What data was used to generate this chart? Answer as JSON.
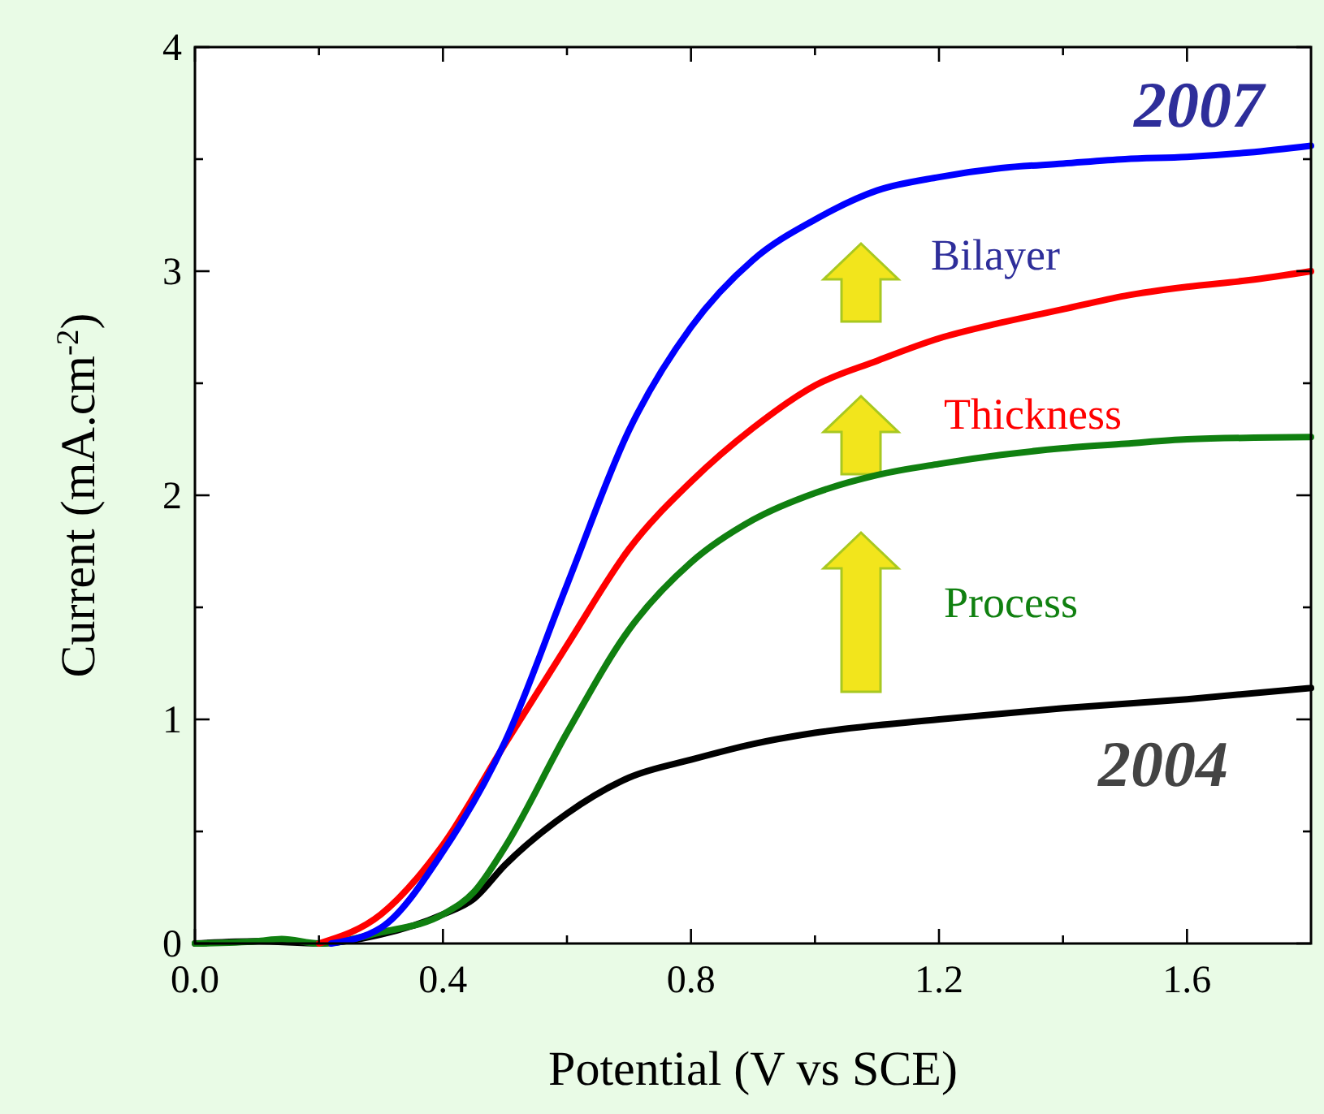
{
  "chart_data": {
    "type": "line",
    "xlabel": "Potential (V vs SCE)",
    "ylabel": "Current (mA.cm$^{-2}$)",
    "xlim": [
      0,
      1.8
    ],
    "ylim": [
      0,
      4
    ],
    "xticks": [
      {
        "value": 0,
        "label": "0.0"
      },
      {
        "value": 0.2,
        "label": null
      },
      {
        "value": 0.4,
        "label": "0.4"
      },
      {
        "value": 0.6,
        "label": null
      },
      {
        "value": 0.8,
        "label": "0.8"
      },
      {
        "value": 1.0,
        "label": null
      },
      {
        "value": 1.2,
        "label": "1.2"
      },
      {
        "value": 1.4,
        "label": null
      },
      {
        "value": 1.6,
        "label": "1.6"
      }
    ],
    "yticks": [
      0,
      {
        "value": 0.5,
        "label": null
      },
      1,
      {
        "value": 1.5,
        "label": null
      },
      2,
      {
        "value": 2.5,
        "label": null
      },
      3,
      {
        "value": 3.5,
        "label": null
      },
      4
    ],
    "grid": false,
    "marker": "none",
    "line_style": "solid",
    "series": [
      {
        "color": "#000000",
        "x": [
          0,
          0.1,
          0.2,
          0.3,
          0.4,
          0.45,
          0.5,
          0.6,
          0.7,
          0.8,
          0.9,
          1.0,
          1.2,
          1.4,
          1.6,
          1.8
        ],
        "values": [
          0,
          0.01,
          0,
          0.04,
          0.13,
          0.2,
          0.35,
          0.58,
          0.74,
          0.82,
          0.89,
          0.94,
          1.0,
          1.05,
          1.09,
          1.14
        ]
      },
      {
        "color": "#108010",
        "x": [
          0,
          0.1,
          0.14,
          0.2,
          0.3,
          0.4,
          0.45,
          0.5,
          0.6,
          0.7,
          0.8,
          0.9,
          1.0,
          1.1,
          1.2,
          1.3,
          1.4,
          1.5,
          1.6,
          1.8
        ],
        "values": [
          0,
          0.01,
          0.02,
          0,
          0.05,
          0.13,
          0.23,
          0.43,
          0.94,
          1.4,
          1.7,
          1.89,
          2.01,
          2.09,
          2.14,
          2.18,
          2.21,
          2.23,
          2.25,
          2.26
        ]
      },
      {
        "color": "#ff0000",
        "x": [
          0.2,
          0.3,
          0.4,
          0.5,
          0.6,
          0.7,
          0.8,
          0.9,
          1.0,
          1.1,
          1.2,
          1.3,
          1.4,
          1.5,
          1.6,
          1.7,
          1.8
        ],
        "values": [
          0,
          0.13,
          0.44,
          0.89,
          1.33,
          1.76,
          2.06,
          2.3,
          2.49,
          2.6,
          2.7,
          2.77,
          2.83,
          2.89,
          2.93,
          2.96,
          3.0
        ]
      },
      {
        "color": "#0000ff",
        "x": [
          0.22,
          0.3,
          0.4,
          0.5,
          0.6,
          0.7,
          0.8,
          0.9,
          1.0,
          1.1,
          1.2,
          1.3,
          1.4,
          1.5,
          1.6,
          1.7,
          1.8
        ],
        "values": [
          0,
          0.07,
          0.41,
          0.9,
          1.6,
          2.29,
          2.75,
          3.05,
          3.23,
          3.36,
          3.42,
          3.46,
          3.48,
          3.5,
          3.51,
          3.53,
          3.56
        ]
      }
    ],
    "annotations": [
      "2007",
      "Bilayer",
      "Thickness",
      "Process",
      "2004"
    ]
  }
}
